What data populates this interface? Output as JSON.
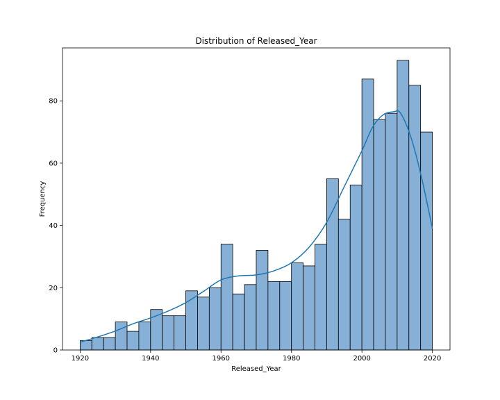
{
  "chart_data": {
    "type": "bar",
    "title": "Distribution of Released_Year",
    "xlabel": "Released_Year",
    "ylabel": "Frequency",
    "xlim": [
      1915,
      2025
    ],
    "ylim": [
      0,
      97
    ],
    "xticks": [
      1920,
      1940,
      1960,
      1980,
      2000,
      2020
    ],
    "yticks": [
      0,
      20,
      40,
      60,
      80
    ],
    "bin_start": 1920,
    "bin_width": 3.333,
    "values": [
      3,
      4,
      4,
      9,
      6,
      9,
      13,
      11,
      11,
      19,
      17,
      20,
      34,
      18,
      21,
      32,
      22,
      22,
      28,
      27,
      34,
      55,
      42,
      53,
      87,
      74,
      76,
      93,
      85,
      70
    ],
    "kde": {
      "x": [
        1920,
        1925,
        1930,
        1935,
        1940,
        1945,
        1950,
        1955,
        1960,
        1965,
        1970,
        1975,
        1980,
        1985,
        1990,
        1995,
        2000,
        2003,
        2006,
        2009,
        2011,
        2014,
        2017,
        2020
      ],
      "y": [
        2.5,
        4.2,
        6.1,
        8.4,
        10.3,
        12.5,
        15.2,
        18.8,
        22.5,
        23.8,
        24.1,
        25.4,
        28.0,
        33.0,
        41.0,
        52.5,
        64.0,
        71.5,
        75.5,
        76.5,
        76.0,
        68.0,
        55.0,
        39.0
      ]
    },
    "bar_fill": "#86b0d6",
    "bar_stroke": "#000000",
    "kde_color": "#1f77b4",
    "grid": false,
    "legend": "none"
  }
}
